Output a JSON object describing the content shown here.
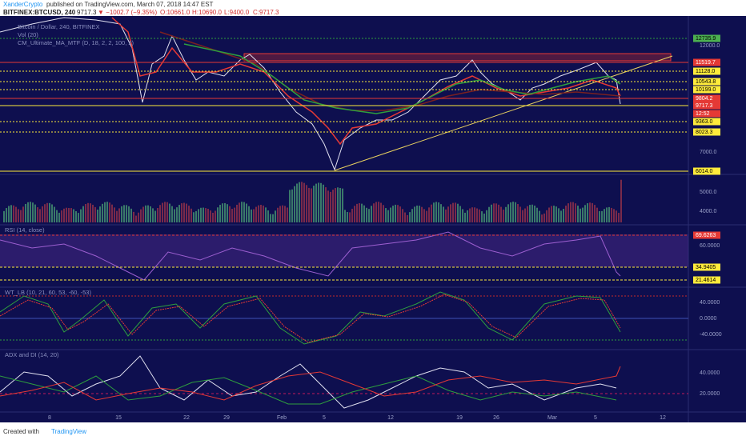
{
  "header": {
    "author": "XanderCrypto",
    "published": "published on TradingView.com, March 07, 2018 14:47 EST"
  },
  "symbol": {
    "name": "BITFINEX:BTCUSD, 240",
    "last": "9717.3",
    "change": "▼ −1002.7 (−9.35%)",
    "ohlc": [
      "O:10661.0",
      "H:10690.0",
      "L:9400.0",
      "C:9717.3"
    ]
  },
  "legend": [
    "Bitcoin / Dollar, 240, BITFINEX",
    "Vol (20)",
    "CM_Ultimate_MA_MTF (D, 18, 2, 2, 100, 2)"
  ],
  "price_axis": [
    "12000.0",
    "7000.0"
  ],
  "price_levels": [
    "12735.9",
    "11519.7",
    "11128.0",
    "10543.8",
    "10199.0",
    "9804.2",
    "9717.3",
    "12:52",
    "9363.0",
    "8023.3",
    "6014.0"
  ],
  "volume_axis": [
    "5000.0",
    "4000.0"
  ],
  "rsi": {
    "title": "RSI (14, close)",
    "axis": [
      "60.0000"
    ],
    "levels": [
      "69.6263",
      "34.9405",
      "21.4614"
    ]
  },
  "wt": {
    "title": "WT_LB (10, 21, 60, 53, -60, -53)",
    "axis": [
      "40.0000",
      "0.0000",
      "-40.0000"
    ]
  },
  "adx": {
    "title": "ADX and DI (14, 20)",
    "axis": [
      "40.0000",
      "20.0000"
    ]
  },
  "time_axis": [
    "8",
    "15",
    "22",
    "29",
    "Feb",
    "5",
    "12",
    "19",
    "26",
    "Mar",
    "5",
    "12"
  ],
  "footer": {
    "text": "Created with",
    "brand": "TradingView"
  }
}
